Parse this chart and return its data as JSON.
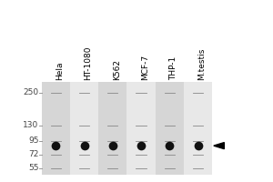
{
  "lane_labels": [
    "Hela",
    "HT-1080",
    "K562",
    "MCF-7",
    "THP-1",
    "M.testis"
  ],
  "mw_markers": [
    250,
    130,
    95,
    72,
    55
  ],
  "band_mw": 86,
  "arrow_mw": 86,
  "lane_colors_odd": "#d6d6d6",
  "lane_colors_even": "#e8e8e8",
  "band_color": "#111111",
  "band_size": 7,
  "bg_color": "#ffffff",
  "tick_color": "#444444",
  "label_fontsize": 6.5,
  "marker_fontsize": 6.5
}
